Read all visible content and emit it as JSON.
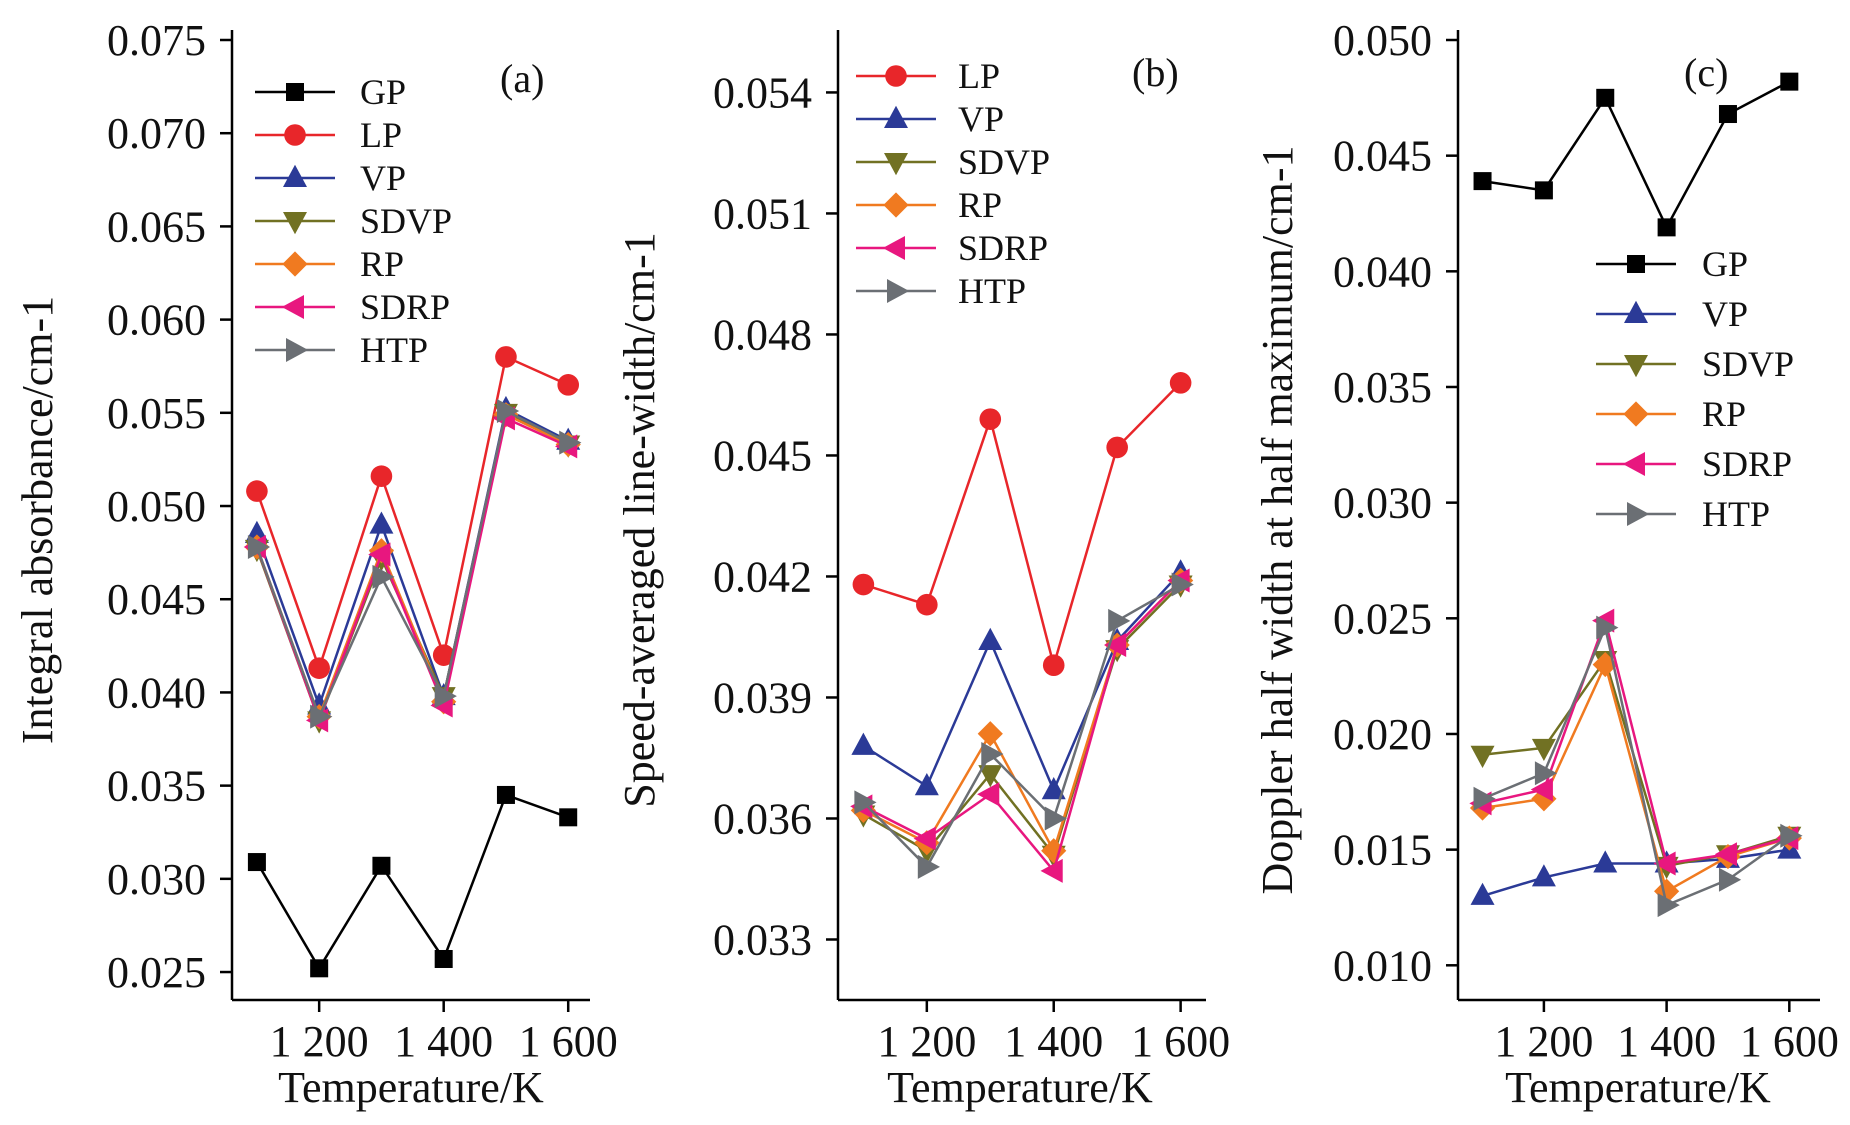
{
  "figure": {
    "panels": [
      "(a)",
      "(b)",
      "(c)"
    ]
  },
  "chart_data": [
    {
      "type": "line",
      "panel_label": "(a)",
      "xlabel": "Temperature/K",
      "ylabel": "Integral absorbance/cm-1",
      "x": [
        1100,
        1200,
        1300,
        1400,
        1500,
        1600
      ],
      "xticks": [
        1200,
        1400,
        1600
      ],
      "xtick_labels": [
        "1 200",
        "1 400",
        "1 600"
      ],
      "xlim": [
        1060,
        1635
      ],
      "ylim": [
        0.0235,
        0.075
      ],
      "yticks": [
        0.025,
        0.03,
        0.035,
        0.04,
        0.045,
        0.05,
        0.055,
        0.06,
        0.065,
        0.07,
        0.075
      ],
      "ytick_labels": [
        "0.025",
        "0.030",
        "0.035",
        "0.040",
        "0.045",
        "0.050",
        "0.055",
        "0.060",
        "0.065",
        "0.070",
        "0.075"
      ],
      "legend_position": "top-left",
      "series": [
        {
          "name": "GP",
          "color": "#000000",
          "marker": "square",
          "values": [
            0.0309,
            0.0252,
            0.0307,
            0.0257,
            0.0345,
            0.0333
          ]
        },
        {
          "name": "LP",
          "color": "#e8262a",
          "marker": "circle",
          "values": [
            0.0508,
            0.0413,
            0.0516,
            0.042,
            0.058,
            0.0565
          ]
        },
        {
          "name": "VP",
          "color": "#2b3a97",
          "marker": "triangle-up",
          "values": [
            0.0485,
            0.0393,
            0.049,
            0.0398,
            0.0552,
            0.0535
          ]
        },
        {
          "name": "SDVP",
          "color": "#717123",
          "marker": "triangle-down",
          "values": [
            0.0477,
            0.0385,
            0.0472,
            0.0398,
            0.055,
            0.0533
          ]
        },
        {
          "name": "RP",
          "color": "#f07a20",
          "marker": "diamond",
          "values": [
            0.0478,
            0.0387,
            0.0476,
            0.0395,
            0.0549,
            0.0533
          ]
        },
        {
          "name": "SDRP",
          "color": "#e8177f",
          "marker": "triangle-left",
          "values": [
            0.0478,
            0.0385,
            0.0474,
            0.0393,
            0.0547,
            0.0532
          ]
        },
        {
          "name": "HTP",
          "color": "#6b6f74",
          "marker": "triangle-right",
          "values": [
            0.0478,
            0.0387,
            0.0462,
            0.0398,
            0.0551,
            0.0534
          ]
        }
      ]
    },
    {
      "type": "line",
      "panel_label": "(b)",
      "xlabel": "Temperature/K",
      "ylabel": "Speed-averaged line-width/cm-1",
      "x": [
        1100,
        1200,
        1300,
        1400,
        1500,
        1600
      ],
      "xticks": [
        1200,
        1400,
        1600
      ],
      "xtick_labels": [
        "1 200",
        "1 400",
        "1 600"
      ],
      "xlim": [
        1060,
        1640
      ],
      "ylim": [
        0.0315,
        0.0553
      ],
      "yticks": [
        0.033,
        0.036,
        0.039,
        0.042,
        0.045,
        0.048,
        0.051,
        0.054
      ],
      "ytick_labels": [
        "0.033",
        "0.036",
        "0.039",
        "0.042",
        "0.045",
        "0.048",
        "0.051",
        "0.054"
      ],
      "legend_position": "top-left",
      "series": [
        {
          "name": "LP",
          "color": "#e8262a",
          "marker": "circle",
          "values": [
            0.0418,
            0.0413,
            0.0459,
            0.0398,
            0.0452,
            0.0468
          ]
        },
        {
          "name": "VP",
          "color": "#2b3a97",
          "marker": "triangle-up",
          "values": [
            0.0378,
            0.0368,
            0.0404,
            0.0367,
            0.0404,
            0.0421
          ]
        },
        {
          "name": "SDVP",
          "color": "#717123",
          "marker": "triangle-down",
          "values": [
            0.0361,
            0.0352,
            0.0371,
            0.0351,
            0.0402,
            0.0418
          ]
        },
        {
          "name": "RP",
          "color": "#f07a20",
          "marker": "diamond",
          "values": [
            0.0362,
            0.0354,
            0.0381,
            0.0352,
            0.0403,
            0.0419
          ]
        },
        {
          "name": "SDRP",
          "color": "#e8177f",
          "marker": "triangle-left",
          "values": [
            0.0363,
            0.0355,
            0.0366,
            0.0347,
            0.0403,
            0.0419
          ]
        },
        {
          "name": "HTP",
          "color": "#6b6f74",
          "marker": "triangle-right",
          "values": [
            0.0364,
            0.0348,
            0.0376,
            0.036,
            0.0409,
            0.0418
          ]
        }
      ]
    },
    {
      "type": "line",
      "panel_label": "(c)",
      "xlabel": "Temperature/K",
      "ylabel": "Doppler half width at half maximum/cm-1",
      "x": [
        1100,
        1200,
        1300,
        1400,
        1500,
        1600
      ],
      "xticks": [
        1200,
        1400,
        1600
      ],
      "xtick_labels": [
        "1 200",
        "1 400",
        "1 600"
      ],
      "xlim": [
        1060,
        1650
      ],
      "ylim": [
        0.0085,
        0.05
      ],
      "yticks": [
        0.01,
        0.015,
        0.02,
        0.025,
        0.03,
        0.035,
        0.04,
        0.045,
        0.05
      ],
      "ytick_labels": [
        "0.010",
        "0.015",
        "0.020",
        "0.025",
        "0.030",
        "0.035",
        "0.040",
        "0.045",
        "0.050"
      ],
      "legend_position": "right",
      "series": [
        {
          "name": "GP",
          "color": "#000000",
          "marker": "square",
          "values": [
            0.0439,
            0.0435,
            0.0475,
            0.0419,
            0.0468,
            0.0482
          ]
        },
        {
          "name": "VP",
          "color": "#2b3a97",
          "marker": "triangle-up",
          "values": [
            0.013,
            0.0138,
            0.0144,
            0.0144,
            0.0146,
            0.015
          ]
        },
        {
          "name": "SDVP",
          "color": "#717123",
          "marker": "triangle-down",
          "values": [
            0.0191,
            0.0194,
            0.0232,
            0.0143,
            0.0148,
            0.0156
          ]
        },
        {
          "name": "RP",
          "color": "#f07a20",
          "marker": "diamond",
          "values": [
            0.0168,
            0.0172,
            0.023,
            0.0132,
            0.0147,
            0.0155
          ]
        },
        {
          "name": "SDRP",
          "color": "#e8177f",
          "marker": "triangle-left",
          "values": [
            0.017,
            0.0176,
            0.0249,
            0.0144,
            0.0148,
            0.0155
          ]
        },
        {
          "name": "HTP",
          "color": "#6b6f74",
          "marker": "triangle-right",
          "values": [
            0.0172,
            0.0183,
            0.0246,
            0.0126,
            0.0137,
            0.0156
          ]
        }
      ]
    }
  ]
}
